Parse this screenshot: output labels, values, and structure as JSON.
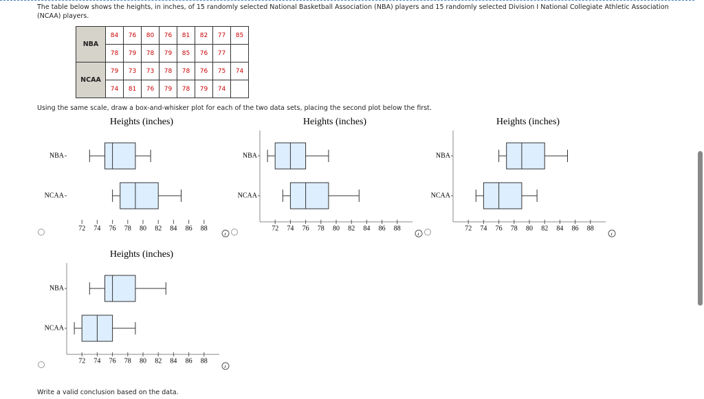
{
  "intro": "The table below shows the heights, in inches, of 15 randomly selected National Basketball Association (NBA) players and 15 randomly selected Division I National Collegiate Athletic Association (NCAA) players.",
  "table": {
    "rows": [
      {
        "label": "NBA",
        "lines": [
          [
            "84",
            "76",
            "80",
            "76",
            "81",
            "82",
            "77",
            "85"
          ],
          [
            "78",
            "79",
            "78",
            "79",
            "85",
            "76",
            "77"
          ]
        ]
      },
      {
        "label": "NCAA",
        "lines": [
          [
            "79",
            "73",
            "73",
            "78",
            "78",
            "76",
            "75",
            "74"
          ],
          [
            "74",
            "81",
            "76",
            "79",
            "78",
            "79",
            "74"
          ]
        ]
      }
    ]
  },
  "instruction": "Using the same scale, draw a box-and-whisker plot for each of the two data sets, placing the second plot below the first.",
  "chart_data": [
    {
      "type": "box",
      "title": "Heights (inches)",
      "categories": [
        "NBA",
        "NCAA"
      ],
      "values": [
        [
          73,
          75,
          76,
          79,
          81
        ],
        [
          76,
          77,
          79,
          82,
          85
        ]
      ],
      "color": "#ddeeff",
      "xlim": [
        70,
        90
      ],
      "xticks": [
        72,
        74,
        76,
        78,
        80,
        82,
        84,
        86,
        88
      ]
    },
    {
      "type": "box",
      "title": "Heights (inches)",
      "categories": [
        "NBA",
        "NCAA"
      ],
      "values": [
        [
          71,
          72,
          74,
          76,
          79
        ],
        [
          73,
          74,
          76,
          79,
          83
        ]
      ],
      "color": "#ddeeff",
      "xlim": [
        70,
        90
      ],
      "xticks": [
        72,
        74,
        76,
        78,
        80,
        82,
        84,
        86,
        88
      ]
    },
    {
      "type": "box",
      "title": "Heights (inches)",
      "categories": [
        "NBA",
        "NCAA"
      ],
      "values": [
        [
          76,
          77,
          79,
          82,
          85
        ],
        [
          73,
          74,
          76,
          79,
          81
        ]
      ],
      "color": "#ddeeff",
      "xlim": [
        70,
        90
      ],
      "xticks": [
        72,
        74,
        76,
        78,
        80,
        82,
        84,
        86,
        88
      ]
    },
    {
      "type": "box",
      "title": "Heights (inches)",
      "categories": [
        "NBA",
        "NCAA"
      ],
      "values": [
        [
          73,
          75,
          76,
          79,
          83
        ],
        [
          71,
          72,
          74,
          76,
          79
        ]
      ],
      "color": "#ddeeff",
      "xlim": [
        70,
        90
      ],
      "xticks": [
        72,
        74,
        76,
        78,
        80,
        82,
        84,
        86,
        88
      ]
    }
  ],
  "conclusion_prompt": "Write a valid conclusion based on the data."
}
